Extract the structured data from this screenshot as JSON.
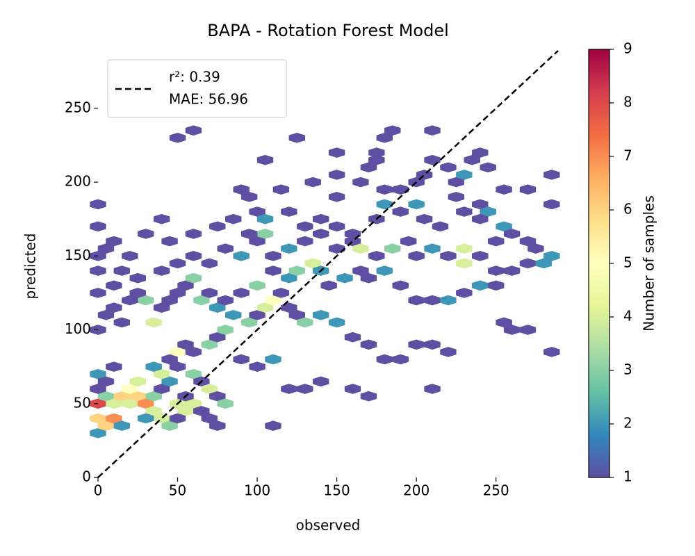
{
  "chart_data": {
    "type": "hexbin",
    "title": "BAPA - Rotation Forest Model",
    "x_label": "observed",
    "y_label": "predicted",
    "xlim": [
      0,
      289
    ],
    "ylim": [
      0,
      289
    ],
    "xticks": [
      0,
      50,
      100,
      150,
      200,
      250
    ],
    "yticks": [
      0,
      50,
      100,
      150,
      200,
      250
    ],
    "colorbar": {
      "label": "Number of samples",
      "lim": [
        1,
        9
      ],
      "ticks": [
        1,
        2,
        3,
        4,
        5,
        6,
        7,
        8,
        9
      ],
      "colormap": [
        "#5e4fa2",
        "#3288bd",
        "#66c2a5",
        "#abdda4",
        "#e6f598",
        "#ffffbf",
        "#fee08b",
        "#fdae61",
        "#f46d43",
        "#d53e4f",
        "#9e0142"
      ]
    },
    "legend": {
      "entries": [
        "r²: 0.39",
        "MAE: 56.96"
      ],
      "line_color": "#000000"
    },
    "points": [
      {
        "x": 0,
        "y": 30,
        "count": 2
      },
      {
        "x": 0,
        "y": 40,
        "count": 6
      },
      {
        "x": 5,
        "y": 35,
        "count": 6
      },
      {
        "x": 10,
        "y": 40,
        "count": 7
      },
      {
        "x": 15,
        "y": 35,
        "count": 2
      },
      {
        "x": 0,
        "y": 50,
        "count": 8
      },
      {
        "x": 5,
        "y": 55,
        "count": 3
      },
      {
        "x": 10,
        "y": 50,
        "count": 4
      },
      {
        "x": 15,
        "y": 55,
        "count": 6
      },
      {
        "x": 20,
        "y": 50,
        "count": 4
      },
      {
        "x": 25,
        "y": 55,
        "count": 6
      },
      {
        "x": 20,
        "y": 60,
        "count": 5
      },
      {
        "x": 25,
        "y": 65,
        "count": 4
      },
      {
        "x": 30,
        "y": 50,
        "count": 7
      },
      {
        "x": 35,
        "y": 45,
        "count": 4
      },
      {
        "x": 35,
        "y": 55,
        "count": 3
      },
      {
        "x": 40,
        "y": 40,
        "count": 4
      },
      {
        "x": 45,
        "y": 35,
        "count": 3
      },
      {
        "x": 30,
        "y": 40,
        "count": 2
      },
      {
        "x": 40,
        "y": 60,
        "count": 1
      },
      {
        "x": 45,
        "y": 65,
        "count": 2
      },
      {
        "x": 50,
        "y": 50,
        "count": 4
      },
      {
        "x": 55,
        "y": 45,
        "count": 4
      },
      {
        "x": 60,
        "y": 50,
        "count": 4
      },
      {
        "x": 55,
        "y": 55,
        "count": 1
      },
      {
        "x": 50,
        "y": 40,
        "count": 1
      },
      {
        "x": 40,
        "y": 70,
        "count": 4
      },
      {
        "x": 35,
        "y": 75,
        "count": 2
      },
      {
        "x": 50,
        "y": 75,
        "count": 1
      },
      {
        "x": 60,
        "y": 70,
        "count": 3
      },
      {
        "x": 65,
        "y": 65,
        "count": 1
      },
      {
        "x": 70,
        "y": 60,
        "count": 4
      },
      {
        "x": 75,
        "y": 55,
        "count": 1
      },
      {
        "x": 80,
        "y": 50,
        "count": 3
      },
      {
        "x": 65,
        "y": 45,
        "count": 1
      },
      {
        "x": 70,
        "y": 40,
        "count": 1
      },
      {
        "x": 75,
        "y": 35,
        "count": 1
      },
      {
        "x": 110,
        "y": 35,
        "count": 1
      },
      {
        "x": 0,
        "y": 70,
        "count": 2
      },
      {
        "x": 5,
        "y": 65,
        "count": 1
      },
      {
        "x": 0,
        "y": 60,
        "count": 1
      },
      {
        "x": 10,
        "y": 75,
        "count": 1
      },
      {
        "x": 50,
        "y": 85,
        "count": 5
      },
      {
        "x": 45,
        "y": 80,
        "count": 1
      },
      {
        "x": 55,
        "y": 90,
        "count": 1
      },
      {
        "x": 60,
        "y": 85,
        "count": 1
      },
      {
        "x": 70,
        "y": 90,
        "count": 3
      },
      {
        "x": 75,
        "y": 95,
        "count": 1
      },
      {
        "x": 80,
        "y": 100,
        "count": 3
      },
      {
        "x": 35,
        "y": 105,
        "count": 4
      },
      {
        "x": 30,
        "y": 120,
        "count": 3
      },
      {
        "x": 40,
        "y": 115,
        "count": 1
      },
      {
        "x": 45,
        "y": 120,
        "count": 1
      },
      {
        "x": 50,
        "y": 125,
        "count": 1
      },
      {
        "x": 55,
        "y": 130,
        "count": 1
      },
      {
        "x": 60,
        "y": 135,
        "count": 3
      },
      {
        "x": 65,
        "y": 120,
        "count": 3
      },
      {
        "x": 70,
        "y": 125,
        "count": 1
      },
      {
        "x": 75,
        "y": 115,
        "count": 2
      },
      {
        "x": 85,
        "y": 110,
        "count": 2
      },
      {
        "x": 95,
        "y": 105,
        "count": 3
      },
      {
        "x": 100,
        "y": 110,
        "count": 1
      },
      {
        "x": 105,
        "y": 115,
        "count": 4
      },
      {
        "x": 110,
        "y": 120,
        "count": 5
      },
      {
        "x": 115,
        "y": 125,
        "count": 1
      },
      {
        "x": 120,
        "y": 115,
        "count": 1
      },
      {
        "x": 125,
        "y": 110,
        "count": 1
      },
      {
        "x": 130,
        "y": 105,
        "count": 3
      },
      {
        "x": 140,
        "y": 110,
        "count": 2
      },
      {
        "x": 150,
        "y": 105,
        "count": 2
      },
      {
        "x": 160,
        "y": 95,
        "count": 1
      },
      {
        "x": 170,
        "y": 90,
        "count": 1
      },
      {
        "x": 180,
        "y": 80,
        "count": 1
      },
      {
        "x": 190,
        "y": 80,
        "count": 1
      },
      {
        "x": 200,
        "y": 90,
        "count": 1
      },
      {
        "x": 210,
        "y": 90,
        "count": 1
      },
      {
        "x": 220,
        "y": 85,
        "count": 1
      },
      {
        "x": 90,
        "y": 80,
        "count": 1
      },
      {
        "x": 100,
        "y": 75,
        "count": 1
      },
      {
        "x": 110,
        "y": 80,
        "count": 2
      },
      {
        "x": 120,
        "y": 60,
        "count": 1
      },
      {
        "x": 130,
        "y": 60,
        "count": 1
      },
      {
        "x": 140,
        "y": 65,
        "count": 1
      },
      {
        "x": 160,
        "y": 60,
        "count": 1
      },
      {
        "x": 170,
        "y": 55,
        "count": 1
      },
      {
        "x": 210,
        "y": 60,
        "count": 1
      },
      {
        "x": 80,
        "y": 120,
        "count": 1
      },
      {
        "x": 90,
        "y": 125,
        "count": 1
      },
      {
        "x": 100,
        "y": 130,
        "count": 3
      },
      {
        "x": 110,
        "y": 140,
        "count": 1
      },
      {
        "x": 120,
        "y": 135,
        "count": 2
      },
      {
        "x": 125,
        "y": 140,
        "count": 3
      },
      {
        "x": 135,
        "y": 145,
        "count": 4
      },
      {
        "x": 140,
        "y": 140,
        "count": 2
      },
      {
        "x": 145,
        "y": 130,
        "count": 1
      },
      {
        "x": 155,
        "y": 135,
        "count": 2
      },
      {
        "x": 165,
        "y": 140,
        "count": 1
      },
      {
        "x": 170,
        "y": 135,
        "count": 1
      },
      {
        "x": 180,
        "y": 140,
        "count": 2
      },
      {
        "x": 190,
        "y": 130,
        "count": 1
      },
      {
        "x": 200,
        "y": 120,
        "count": 1
      },
      {
        "x": 210,
        "y": 120,
        "count": 1
      },
      {
        "x": 220,
        "y": 120,
        "count": 2
      },
      {
        "x": 230,
        "y": 125,
        "count": 1
      },
      {
        "x": 240,
        "y": 130,
        "count": 2
      },
      {
        "x": 250,
        "y": 130,
        "count": 1
      },
      {
        "x": 255,
        "y": 105,
        "count": 1
      },
      {
        "x": 260,
        "y": 100,
        "count": 1
      },
      {
        "x": 270,
        "y": 100,
        "count": 1
      },
      {
        "x": 285,
        "y": 85,
        "count": 1
      },
      {
        "x": 0,
        "y": 100,
        "count": 1
      },
      {
        "x": 5,
        "y": 110,
        "count": 1
      },
      {
        "x": 10,
        "y": 115,
        "count": 1
      },
      {
        "x": 15,
        "y": 105,
        "count": 1
      },
      {
        "x": 20,
        "y": 120,
        "count": 1
      },
      {
        "x": 25,
        "y": 125,
        "count": 1
      },
      {
        "x": 0,
        "y": 125,
        "count": 1
      },
      {
        "x": 10,
        "y": 130,
        "count": 1
      },
      {
        "x": 15,
        "y": 140,
        "count": 1
      },
      {
        "x": 25,
        "y": 135,
        "count": 1
      },
      {
        "x": 40,
        "y": 140,
        "count": 1
      },
      {
        "x": 50,
        "y": 145,
        "count": 1
      },
      {
        "x": 60,
        "y": 150,
        "count": 1
      },
      {
        "x": 70,
        "y": 145,
        "count": 1
      },
      {
        "x": 80,
        "y": 155,
        "count": 1
      },
      {
        "x": 90,
        "y": 150,
        "count": 2
      },
      {
        "x": 100,
        "y": 160,
        "count": 1
      },
      {
        "x": 105,
        "y": 165,
        "count": 3
      },
      {
        "x": 110,
        "y": 150,
        "count": 1
      },
      {
        "x": 120,
        "y": 155,
        "count": 2
      },
      {
        "x": 130,
        "y": 160,
        "count": 1
      },
      {
        "x": 140,
        "y": 165,
        "count": 1
      },
      {
        "x": 150,
        "y": 155,
        "count": 1
      },
      {
        "x": 160,
        "y": 160,
        "count": 1
      },
      {
        "x": 165,
        "y": 155,
        "count": 4
      },
      {
        "x": 175,
        "y": 150,
        "count": 1
      },
      {
        "x": 185,
        "y": 155,
        "count": 3
      },
      {
        "x": 195,
        "y": 160,
        "count": 1
      },
      {
        "x": 200,
        "y": 150,
        "count": 1
      },
      {
        "x": 210,
        "y": 155,
        "count": 2
      },
      {
        "x": 220,
        "y": 150,
        "count": 1
      },
      {
        "x": 230,
        "y": 155,
        "count": 4
      },
      {
        "x": 230,
        "y": 145,
        "count": 4
      },
      {
        "x": 240,
        "y": 150,
        "count": 1
      },
      {
        "x": 250,
        "y": 140,
        "count": 1
      },
      {
        "x": 260,
        "y": 140,
        "count": 1
      },
      {
        "x": 270,
        "y": 145,
        "count": 1
      },
      {
        "x": 280,
        "y": 145,
        "count": 2
      },
      {
        "x": 285,
        "y": 150,
        "count": 2
      },
      {
        "x": 255,
        "y": 170,
        "count": 2
      },
      {
        "x": 250,
        "y": 160,
        "count": 1
      },
      {
        "x": 260,
        "y": 165,
        "count": 1
      },
      {
        "x": 270,
        "y": 160,
        "count": 1
      },
      {
        "x": 275,
        "y": 155,
        "count": 1
      },
      {
        "x": 0,
        "y": 140,
        "count": 1
      },
      {
        "x": 0,
        "y": 150,
        "count": 1
      },
      {
        "x": 5,
        "y": 155,
        "count": 1
      },
      {
        "x": 0,
        "y": 170,
        "count": 1
      },
      {
        "x": 10,
        "y": 160,
        "count": 1
      },
      {
        "x": 20,
        "y": 150,
        "count": 1
      },
      {
        "x": 30,
        "y": 165,
        "count": 1
      },
      {
        "x": 45,
        "y": 160,
        "count": 1
      },
      {
        "x": 60,
        "y": 165,
        "count": 1
      },
      {
        "x": 75,
        "y": 170,
        "count": 1
      },
      {
        "x": 85,
        "y": 175,
        "count": 1
      },
      {
        "x": 95,
        "y": 165,
        "count": 1
      },
      {
        "x": 100,
        "y": 180,
        "count": 1
      },
      {
        "x": 105,
        "y": 175,
        "count": 2
      },
      {
        "x": 120,
        "y": 180,
        "count": 1
      },
      {
        "x": 130,
        "y": 170,
        "count": 1
      },
      {
        "x": 140,
        "y": 175,
        "count": 1
      },
      {
        "x": 150,
        "y": 170,
        "count": 1
      },
      {
        "x": 160,
        "y": 165,
        "count": 1
      },
      {
        "x": 175,
        "y": 175,
        "count": 1
      },
      {
        "x": 180,
        "y": 185,
        "count": 2
      },
      {
        "x": 190,
        "y": 180,
        "count": 1
      },
      {
        "x": 200,
        "y": 185,
        "count": 2
      },
      {
        "x": 205,
        "y": 175,
        "count": 1
      },
      {
        "x": 215,
        "y": 170,
        "count": 1
      },
      {
        "x": 225,
        "y": 190,
        "count": 1
      },
      {
        "x": 230,
        "y": 180,
        "count": 1
      },
      {
        "x": 240,
        "y": 185,
        "count": 1
      },
      {
        "x": 245,
        "y": 180,
        "count": 2
      },
      {
        "x": 240,
        "y": 175,
        "count": 1
      },
      {
        "x": 285,
        "y": 185,
        "count": 1
      },
      {
        "x": 0,
        "y": 185,
        "count": 1
      },
      {
        "x": 40,
        "y": 175,
        "count": 1
      },
      {
        "x": 90,
        "y": 195,
        "count": 1
      },
      {
        "x": 95,
        "y": 190,
        "count": 1
      },
      {
        "x": 115,
        "y": 195,
        "count": 1
      },
      {
        "x": 135,
        "y": 200,
        "count": 1
      },
      {
        "x": 150,
        "y": 190,
        "count": 1
      },
      {
        "x": 150,
        "y": 205,
        "count": 1
      },
      {
        "x": 165,
        "y": 200,
        "count": 1
      },
      {
        "x": 170,
        "y": 210,
        "count": 1
      },
      {
        "x": 175,
        "y": 215,
        "count": 1
      },
      {
        "x": 180,
        "y": 195,
        "count": 1
      },
      {
        "x": 190,
        "y": 195,
        "count": 1
      },
      {
        "x": 200,
        "y": 200,
        "count": 1
      },
      {
        "x": 205,
        "y": 205,
        "count": 1
      },
      {
        "x": 210,
        "y": 215,
        "count": 1
      },
      {
        "x": 220,
        "y": 210,
        "count": 1
      },
      {
        "x": 225,
        "y": 200,
        "count": 1
      },
      {
        "x": 230,
        "y": 205,
        "count": 2
      },
      {
        "x": 235,
        "y": 215,
        "count": 1
      },
      {
        "x": 245,
        "y": 210,
        "count": 1
      },
      {
        "x": 255,
        "y": 195,
        "count": 1
      },
      {
        "x": 270,
        "y": 195,
        "count": 1
      },
      {
        "x": 285,
        "y": 205,
        "count": 1
      },
      {
        "x": 50,
        "y": 230,
        "count": 1
      },
      {
        "x": 60,
        "y": 235,
        "count": 1
      },
      {
        "x": 125,
        "y": 230,
        "count": 1
      },
      {
        "x": 105,
        "y": 215,
        "count": 1
      },
      {
        "x": 150,
        "y": 220,
        "count": 1
      },
      {
        "x": 175,
        "y": 220,
        "count": 1
      },
      {
        "x": 180,
        "y": 230,
        "count": 1
      },
      {
        "x": 185,
        "y": 235,
        "count": 1
      },
      {
        "x": 210,
        "y": 235,
        "count": 1
      },
      {
        "x": 240,
        "y": 220,
        "count": 1
      }
    ]
  }
}
